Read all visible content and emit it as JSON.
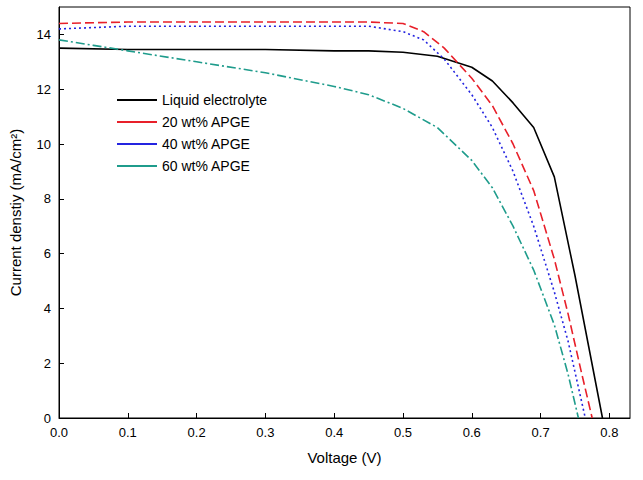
{
  "chart_data": {
    "type": "line",
    "x_label": "Voltage (V)",
    "y_label": "Current denstiy (mA/cm²)",
    "xlim": [
      0,
      0.83
    ],
    "xticks": [
      {
        "value": 0,
        "label": "0.0"
      },
      0.1,
      0.2,
      0.3,
      0.4,
      0.5,
      0.6,
      0.7,
      0.8
    ],
    "ylim": [
      0,
      15
    ],
    "yticks": [
      0,
      2,
      4,
      6,
      8,
      10,
      12,
      14
    ],
    "grid": false,
    "legend": "upper left",
    "series": [
      {
        "name": "Liquid electrolyte",
        "color": "#000000",
        "line_style": "solid",
        "x": [
          0,
          0.1,
          0.2,
          0.3,
          0.4,
          0.45,
          0.5,
          0.55,
          0.6,
          0.63,
          0.66,
          0.69,
          0.72,
          0.75,
          0.77,
          0.79
        ],
        "values": [
          13.5,
          13.45,
          13.45,
          13.45,
          13.4,
          13.4,
          13.35,
          13.2,
          12.8,
          12.3,
          11.5,
          10.6,
          8.8,
          5.2,
          2.6,
          0
        ]
      },
      {
        "name": "20 wt% APGE",
        "color": "#e8202a",
        "line_style": "dashed",
        "x": [
          0,
          0.1,
          0.2,
          0.3,
          0.4,
          0.45,
          0.5,
          0.53,
          0.56,
          0.6,
          0.63,
          0.66,
          0.69,
          0.72,
          0.74,
          0.76,
          0.775
        ],
        "values": [
          14.4,
          14.45,
          14.45,
          14.45,
          14.45,
          14.45,
          14.4,
          14.1,
          13.5,
          12.4,
          11.4,
          10.0,
          8.3,
          5.8,
          3.8,
          1.6,
          0
        ]
      },
      {
        "name": "40 wt% APGE",
        "color": "#2424e0",
        "line_style": "dotted",
        "x": [
          0,
          0.1,
          0.2,
          0.3,
          0.4,
          0.45,
          0.5,
          0.53,
          0.56,
          0.6,
          0.63,
          0.66,
          0.69,
          0.72,
          0.74,
          0.765
        ],
        "values": [
          14.2,
          14.3,
          14.3,
          14.3,
          14.3,
          14.3,
          14.1,
          13.8,
          13.1,
          11.8,
          10.6,
          9.0,
          7.0,
          4.6,
          2.8,
          0
        ]
      },
      {
        "name": "60 wt% APGE",
        "color": "#1f9c8c",
        "line_style": "dashdot",
        "x": [
          0,
          0.05,
          0.1,
          0.2,
          0.3,
          0.4,
          0.45,
          0.5,
          0.55,
          0.6,
          0.63,
          0.66,
          0.69,
          0.72,
          0.74,
          0.755
        ],
        "values": [
          13.8,
          13.6,
          13.4,
          13.0,
          12.6,
          12.1,
          11.8,
          11.3,
          10.6,
          9.4,
          8.4,
          7.0,
          5.4,
          3.4,
          1.6,
          0
        ]
      }
    ]
  }
}
